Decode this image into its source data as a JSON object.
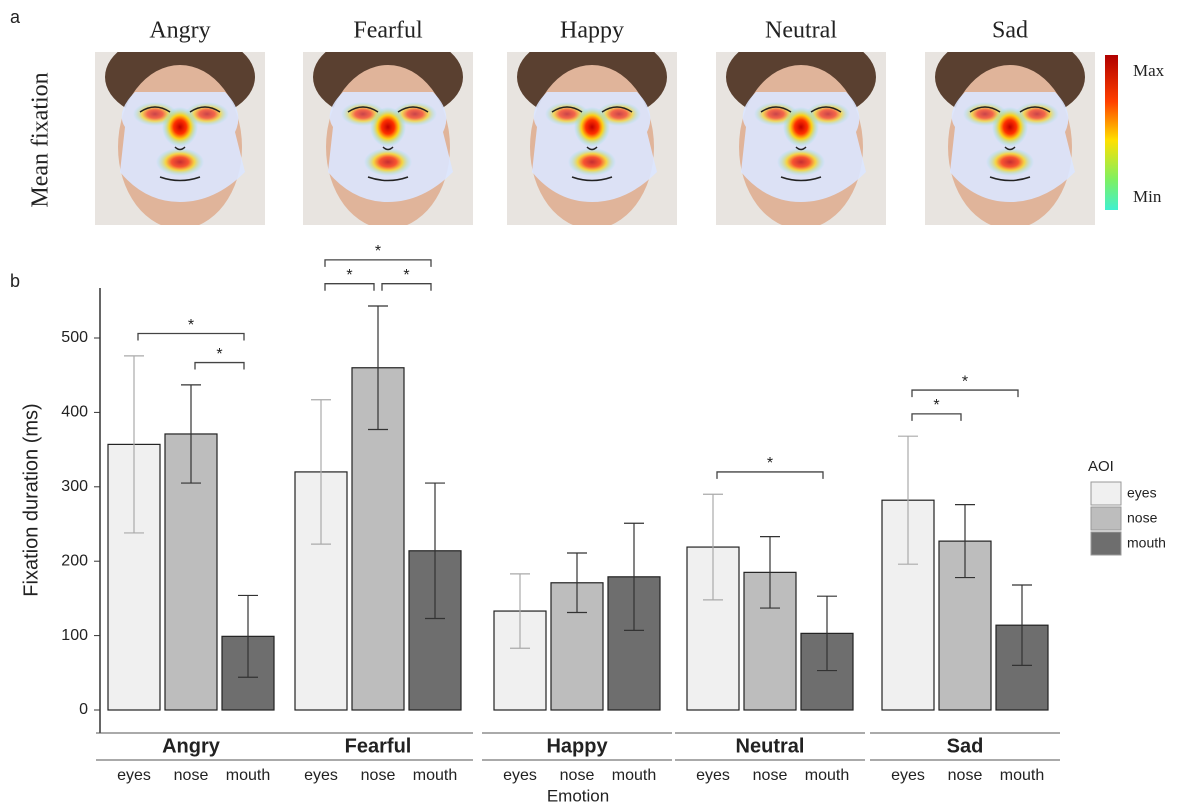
{
  "panel_labels": [
    "a",
    "b"
  ],
  "heatmap": {
    "ylabel": "Mean fixation",
    "titles": [
      "Angry",
      "Fearful",
      "Happy",
      "Neutral",
      "Sad"
    ],
    "colorbar": {
      "max": "Max",
      "min": "Min"
    }
  },
  "chart_data": {
    "type": "bar",
    "ylabel": "Fixation duration (ms)",
    "xlabel": "Emotion",
    "legend_title": "AOI",
    "legend": "right",
    "categories": [
      "Angry",
      "Fearful",
      "Happy",
      "Neutral",
      "Sad"
    ],
    "series": [
      {
        "name": "eyes",
        "color": "#f0f0f0",
        "values": [
          357,
          320,
          133,
          219,
          282
        ],
        "errors": [
          119,
          97,
          50,
          71,
          86
        ]
      },
      {
        "name": "nose",
        "color": "#bdbdbd",
        "values": [
          371,
          460,
          171,
          185,
          227
        ],
        "errors": [
          66,
          83,
          40,
          48,
          49
        ]
      },
      {
        "name": "mouth",
        "color": "#6e6e6e",
        "values": [
          99,
          214,
          179,
          103,
          114
        ],
        "errors": [
          55,
          91,
          72,
          50,
          54
        ]
      }
    ],
    "ylim": [
      -31,
      567
    ],
    "yticks": [
      0,
      100,
      200,
      300,
      400,
      500
    ],
    "significance": [
      {
        "category": "Angry",
        "between": [
          "nose",
          "mouth"
        ],
        "label": "*"
      },
      {
        "category": "Angry",
        "between": [
          "eyes",
          "mouth"
        ],
        "label": "*"
      },
      {
        "category": "Fearful",
        "between": [
          "eyes",
          "nose"
        ],
        "label": "*"
      },
      {
        "category": "Fearful",
        "between": [
          "nose",
          "mouth"
        ],
        "label": "*"
      },
      {
        "category": "Fearful",
        "between": [
          "eyes",
          "mouth"
        ],
        "label": "*"
      },
      {
        "category": "Neutral",
        "between": [
          "eyes",
          "mouth"
        ],
        "label": "*"
      },
      {
        "category": "Sad",
        "between": [
          "eyes",
          "nose"
        ],
        "label": "*"
      },
      {
        "category": "Sad",
        "between": [
          "eyes",
          "mouth"
        ],
        "label": "*"
      }
    ]
  }
}
